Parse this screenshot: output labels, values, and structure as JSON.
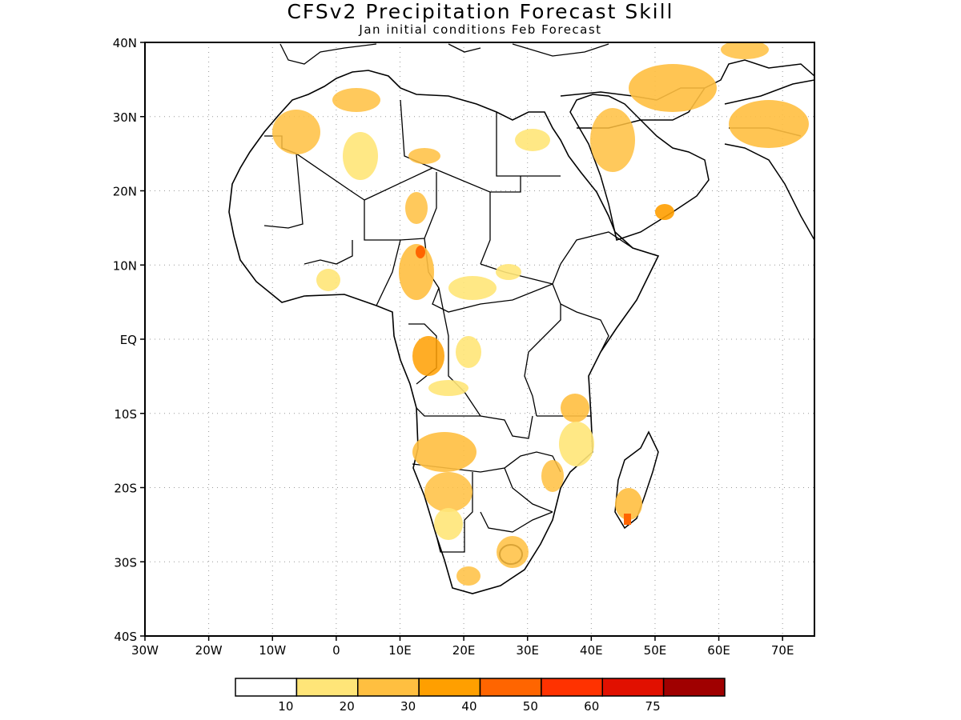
{
  "title": "CFSv2 Precipitation Forecast Skill",
  "subtitle": "Jan initial conditions  Feb Forecast",
  "map": {
    "region": "Africa and Middle East",
    "projection": "lat-lon",
    "lon_range": [
      -30,
      75
    ],
    "lat_range": [
      -40,
      40
    ],
    "grid": "dotted",
    "lat_labels": [
      "40N",
      "30N",
      "20N",
      "10N",
      "EQ",
      "10S",
      "20S",
      "30S",
      "40S"
    ],
    "lon_labels": [
      "30W",
      "20W",
      "10W",
      "0",
      "10E",
      "20E",
      "30E",
      "40E",
      "50E",
      "60E",
      "70E"
    ]
  },
  "colorbar": {
    "colors": [
      "#ffffff",
      "#ffe578",
      "#ffbf40",
      "#ff9f00",
      "#ff6500",
      "#ff3200",
      "#e11000",
      "#a00000"
    ],
    "labels": [
      "10",
      "20",
      "30",
      "40",
      "50",
      "60",
      "75"
    ]
  }
}
